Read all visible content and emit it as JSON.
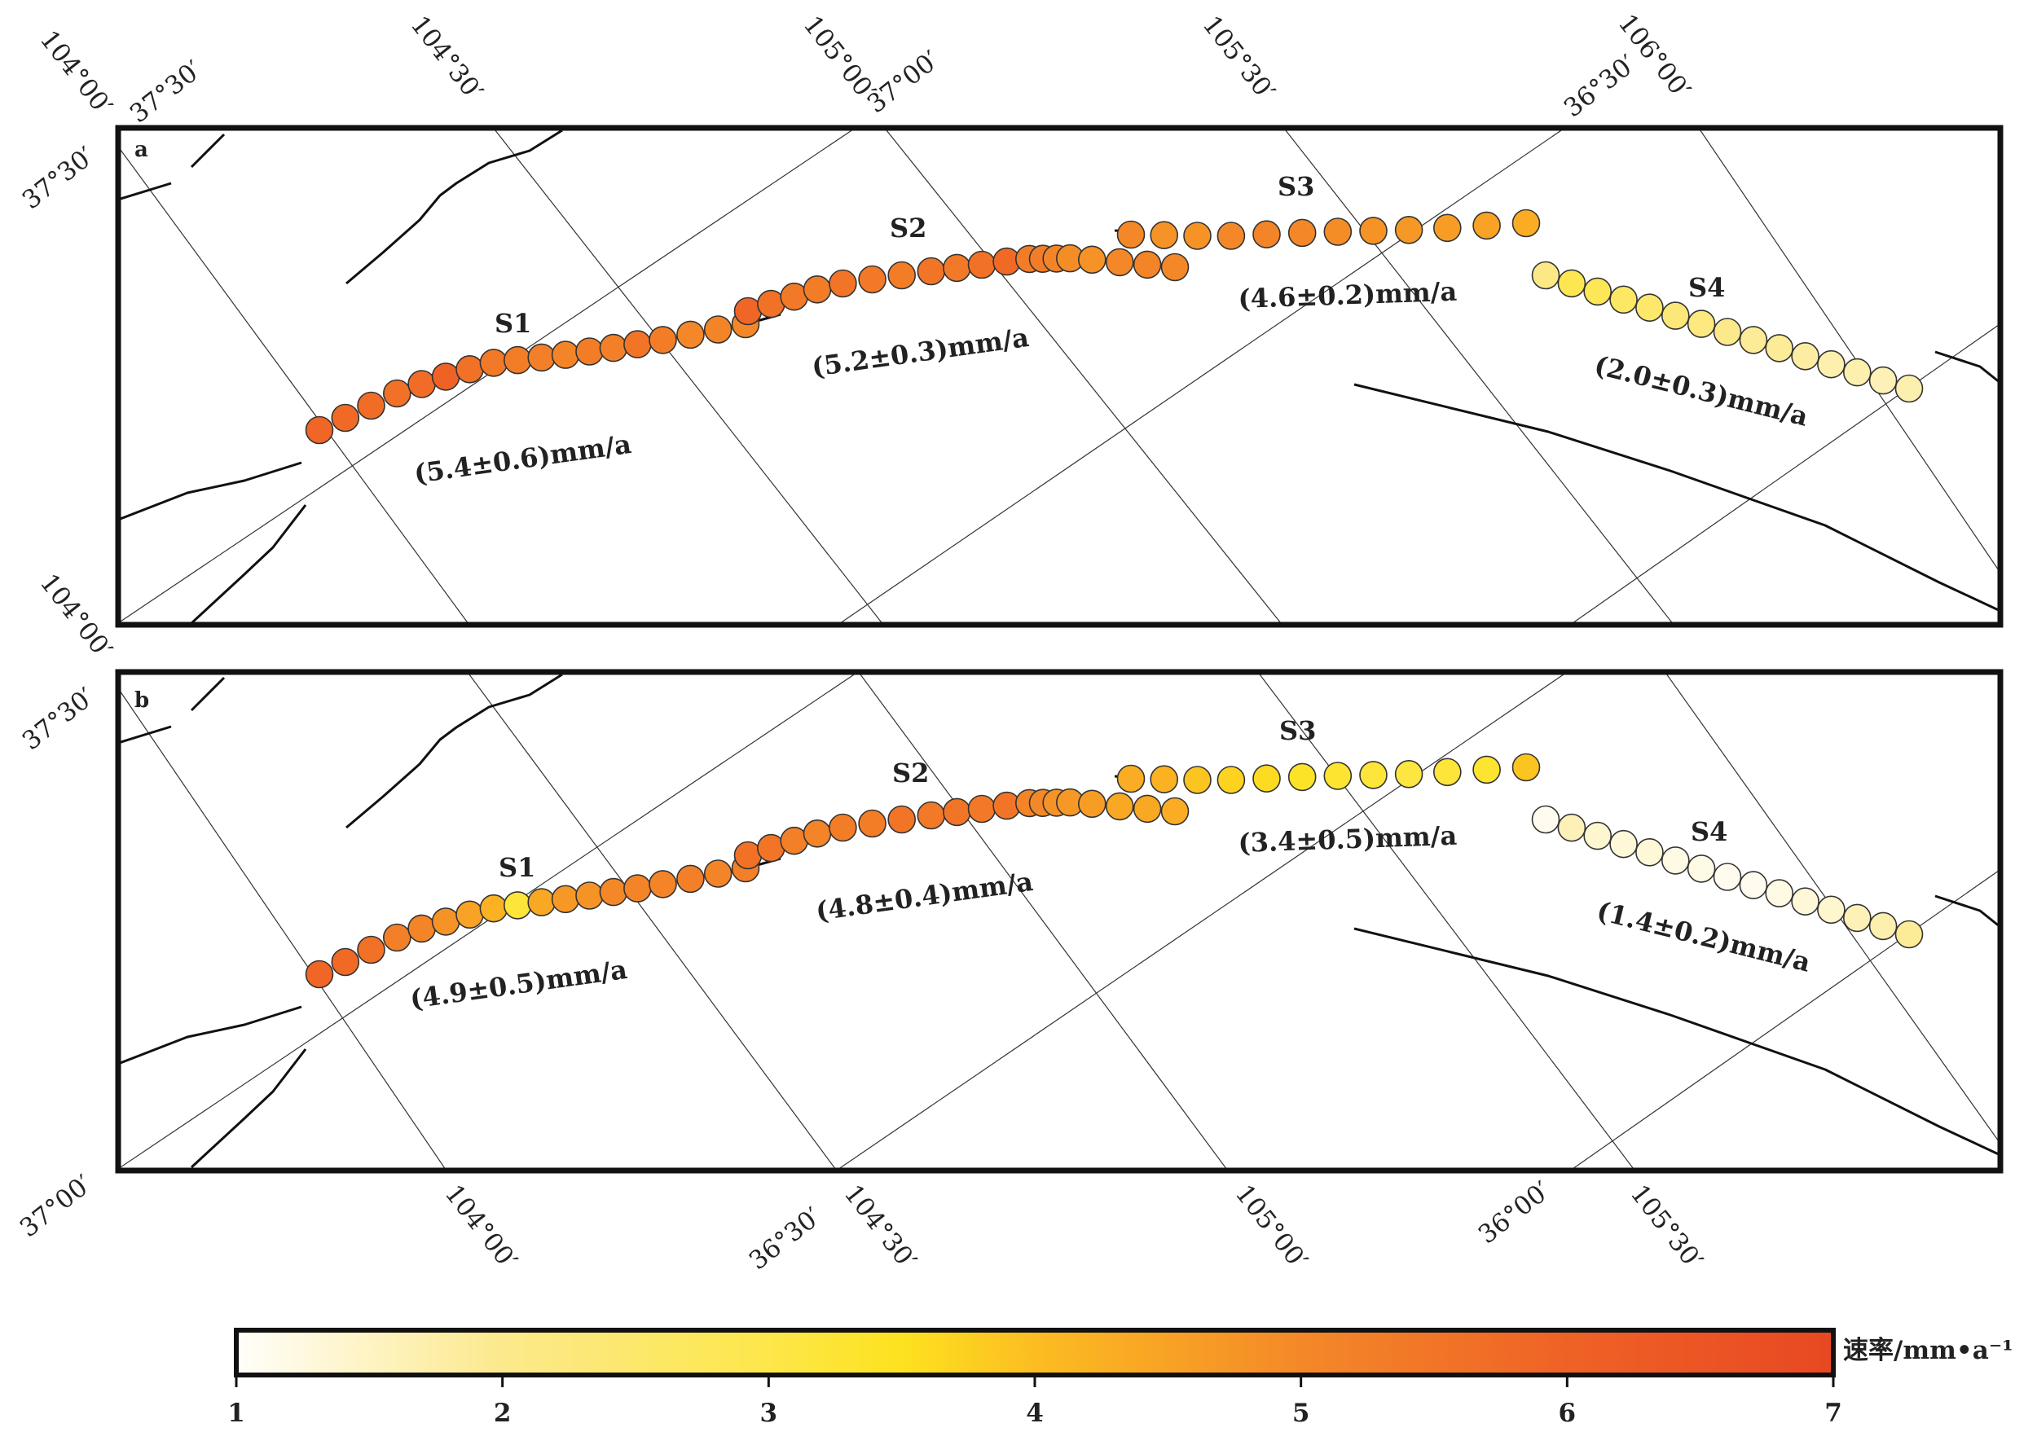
{
  "panels": [
    {
      "label": "a",
      "grid_labels_top": [
        "104°00′",
        "37°30′",
        "104°30′",
        "105°00′",
        "37°00′",
        "105°30′",
        "36°30′",
        "106°00′"
      ],
      "grid_labels_left": [
        "37°30′",
        "104°00′"
      ],
      "segments": [
        {
          "name": "S1",
          "rate": "(5.4±0.6)mm/a"
        },
        {
          "name": "S2",
          "rate": "(5.2±0.3)mm/a"
        },
        {
          "name": "S3",
          "rate": "(4.6±0.2)mm/a"
        },
        {
          "name": "S4",
          "rate": "(2.0±0.3)mm/a"
        }
      ],
      "point_rates": [
        [
          5.9,
          5.8,
          5.7,
          5.6,
          5.7,
          6.0,
          5.6,
          5.4,
          5.3,
          5.2,
          5.1,
          5.3,
          5.2,
          5.5,
          5.3,
          5.0,
          5.1,
          5.0
        ],
        [
          5.9,
          5.6,
          5.4,
          5.3,
          5.5,
          5.4,
          5.3,
          5.5,
          5.4,
          5.6,
          5.8,
          5.3,
          5.3,
          5.1,
          4.9,
          4.8,
          5.0,
          5.1,
          5.0
        ],
        [
          5.0,
          4.8,
          4.8,
          5.0,
          5.1,
          5.0,
          4.9,
          4.8,
          4.7,
          4.6,
          4.5,
          4.3
        ],
        [
          2.1,
          2.9,
          2.8,
          2.6,
          2.5,
          2.3,
          2.2,
          2.0,
          1.9,
          1.9,
          1.8,
          1.7,
          1.7,
          1.6,
          1.7
        ]
      ]
    },
    {
      "label": "b",
      "grid_labels_left": [
        "37°30′",
        "37°00′"
      ],
      "grid_labels_bottom": [
        "104°00′",
        "36°30′",
        "104°30′",
        "105°00′",
        "36°00′",
        "105°30′"
      ],
      "segments": [
        {
          "name": "S1",
          "rate": "(4.9±0.5)mm/a"
        },
        {
          "name": "S2",
          "rate": "(4.8±0.4)mm/a"
        },
        {
          "name": "S3",
          "rate": "(3.4±0.5)mm/a"
        },
        {
          "name": "S4",
          "rate": "(1.4±0.2)mm/a"
        }
      ],
      "point_rates": [
        [
          5.9,
          5.8,
          5.6,
          5.2,
          5.1,
          4.8,
          4.5,
          4.2,
          3.2,
          4.4,
          4.7,
          4.8,
          5.0,
          5.1,
          5.1,
          5.2,
          5.1,
          5.2
        ],
        [
          5.6,
          5.5,
          5.2,
          5.1,
          5.3,
          5.3,
          5.5,
          5.4,
          5.5,
          5.4,
          5.5,
          5.1,
          5.0,
          4.8,
          4.7,
          4.6,
          4.4,
          4.4,
          4.3
        ],
        [
          4.3,
          4.2,
          3.9,
          3.7,
          3.6,
          3.4,
          3.3,
          3.2,
          3.1,
          3.2,
          3.3,
          3.9
        ],
        [
          1.1,
          1.6,
          1.4,
          1.3,
          1.3,
          1.2,
          1.2,
          1.1,
          1.1,
          1.2,
          1.3,
          1.4,
          1.6,
          1.7,
          1.9
        ]
      ]
    }
  ],
  "colorbar": {
    "ticks": [
      "1",
      "2",
      "3",
      "4",
      "5",
      "6",
      "7"
    ],
    "min": 1,
    "max": 7,
    "stops": [
      {
        "v": 1,
        "color": "#fffefa"
      },
      {
        "v": 2,
        "color": "#fce98c"
      },
      {
        "v": 3,
        "color": "#fde74a"
      },
      {
        "v": 3.5,
        "color": "#fde21f"
      },
      {
        "v": 4,
        "color": "#fcbd22"
      },
      {
        "v": 5,
        "color": "#f48828"
      },
      {
        "v": 6,
        "color": "#ef6226"
      },
      {
        "v": 7,
        "color": "#e84822"
      }
    ],
    "label": "速率/mm•a⁻¹"
  }
}
